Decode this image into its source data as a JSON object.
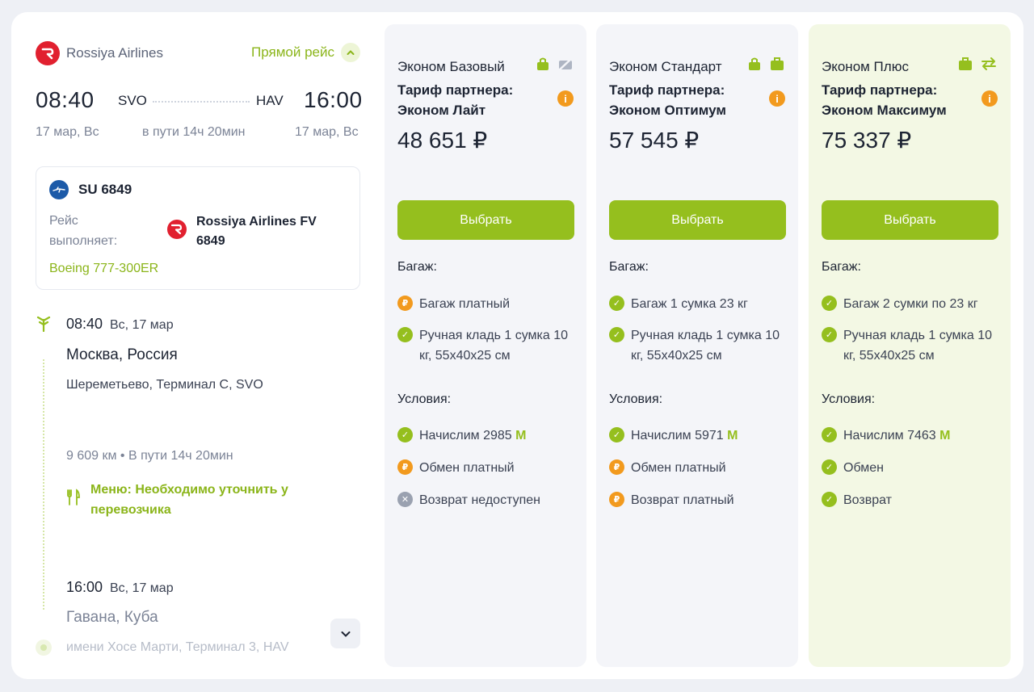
{
  "left": {
    "airline_name": "Rossiya Airlines",
    "direct_label": "Прямой рейс",
    "dep_time": "08:40",
    "dep_iata": "SVO",
    "arr_iata": "HAV",
    "arr_time": "16:00",
    "dep_date": "17 мар, Вс",
    "duration": "в пути 14ч 20мин",
    "arr_date": "17 мар, Вс",
    "flight": {
      "number": "SU 6849",
      "operated_label": "Рейс выполняет:",
      "operator": "Rossiya Airlines FV 6849",
      "aircraft": "Boeing 777-300ER"
    },
    "timeline": {
      "dep_time": "08:40",
      "dep_date": "Вс, 17 мар",
      "dep_city": "Москва, Россия",
      "dep_airport": "Шереметьево, Терминал C, SVO",
      "distance": "9 609 км • В пути 14ч 20мин",
      "menu": "Меню: Необходимо уточнить у перевозчика",
      "arr_time": "16:00",
      "arr_date": "Вс, 17 мар",
      "arr_city": "Гавана, Куба",
      "arr_airport": "имени Хосе Марти, Терминал 3, HAV"
    }
  },
  "tariffs": [
    {
      "name": "Эконом Базовый",
      "partner": "Тариф партнера: Эконом Лайт",
      "price": "48 651 ₽",
      "button": "Выбрать",
      "baggage_title": "Багаж:",
      "baggage": [
        {
          "status": "paid",
          "text": "Багаж платный"
        },
        {
          "status": "ok",
          "text": "Ручная кладь 1 сумка 10 кг, 55х40х25 см"
        }
      ],
      "conditions_title": "Условия:",
      "conditions": [
        {
          "status": "ok",
          "text": "Начислим 2985",
          "miles": true
        },
        {
          "status": "paid",
          "text": "Обмен платный"
        },
        {
          "status": "no",
          "text": "Возврат недоступен"
        }
      ]
    },
    {
      "name": "Эконом Стандарт",
      "partner": "Тариф партнера: Эконом Оптимум",
      "price": "57 545 ₽",
      "button": "Выбрать",
      "baggage_title": "Багаж:",
      "baggage": [
        {
          "status": "ok",
          "text": "Багаж 1 сумка 23 кг"
        },
        {
          "status": "ok",
          "text": "Ручная кладь 1 сумка 10 кг, 55х40х25 см"
        }
      ],
      "conditions_title": "Условия:",
      "conditions": [
        {
          "status": "ok",
          "text": "Начислим 5971",
          "miles": true
        },
        {
          "status": "paid",
          "text": "Обмен платный"
        },
        {
          "status": "paid",
          "text": "Возврат платный"
        }
      ]
    },
    {
      "name": "Эконом Плюс",
      "partner": "Тариф партнера: Эконом Максимум",
      "price": "75 337 ₽",
      "button": "Выбрать",
      "baggage_title": "Багаж:",
      "baggage": [
        {
          "status": "ok",
          "text": "Багаж 2 сумки по 23 кг"
        },
        {
          "status": "ok",
          "text": "Ручная кладь 1 сумка 10 кг, 55х40х25 см"
        }
      ],
      "conditions_title": "Условия:",
      "conditions": [
        {
          "status": "ok",
          "text": "Начислим 7463",
          "miles": true
        },
        {
          "status": "ok",
          "text": "Обмен"
        },
        {
          "status": "ok",
          "text": "Возврат"
        }
      ]
    }
  ],
  "miles_symbol": "М",
  "colors": {
    "accent": "#95bf1e",
    "paid": "#f29a1e",
    "unavailable": "#9aa1b0",
    "airline_red": "#e1202f"
  }
}
